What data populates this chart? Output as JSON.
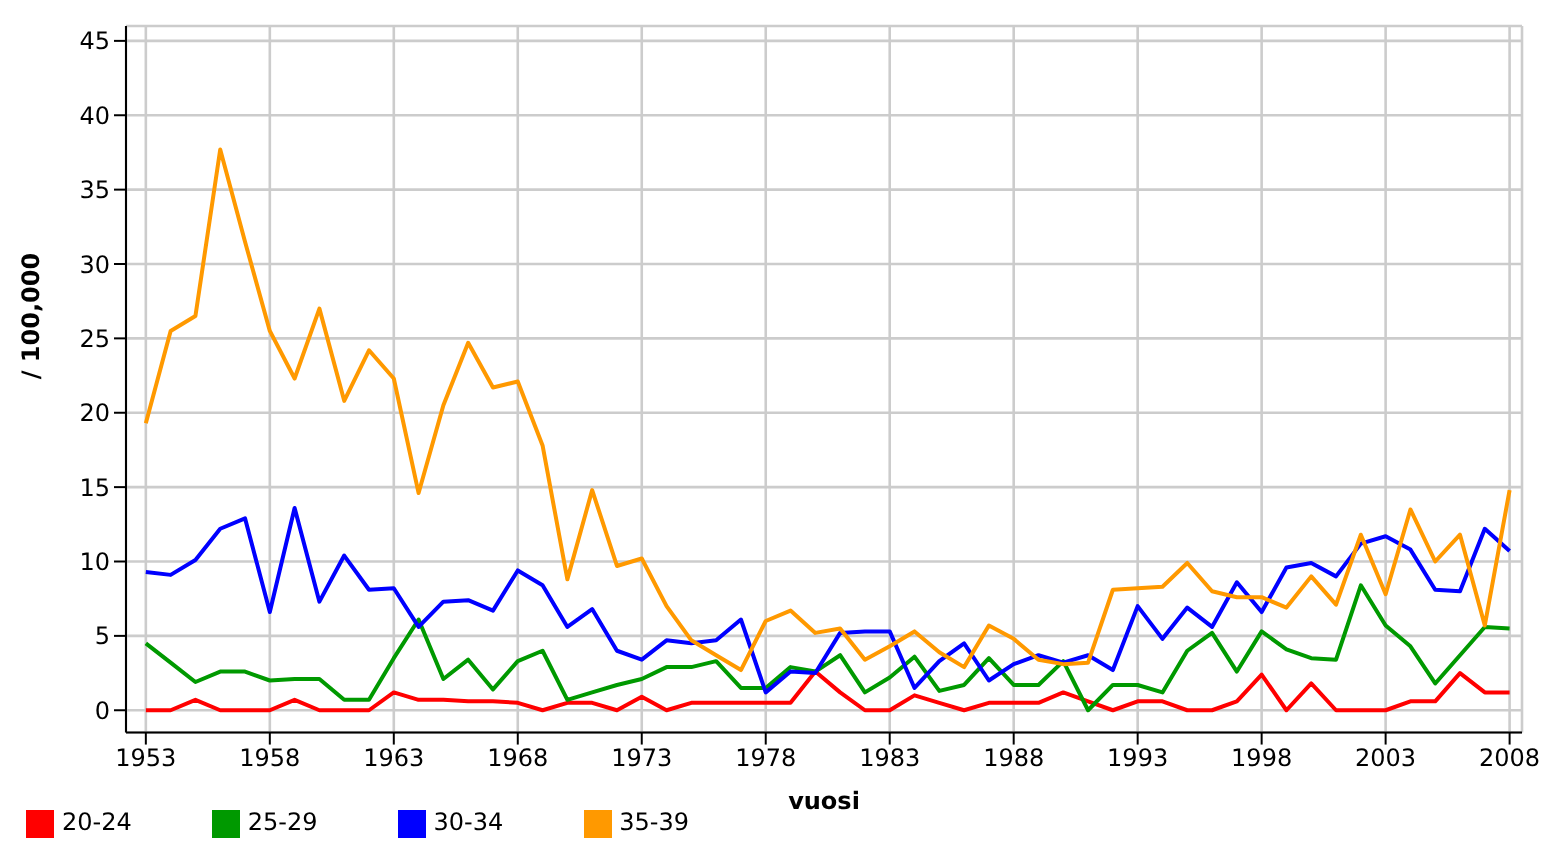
{
  "chart_data": {
    "type": "line",
    "xlabel": "vuosi",
    "ylabel": "/ 100,000",
    "x": [
      1953,
      1954,
      1955,
      1956,
      1957,
      1958,
      1959,
      1960,
      1961,
      1962,
      1963,
      1964,
      1965,
      1966,
      1967,
      1968,
      1969,
      1970,
      1971,
      1972,
      1973,
      1974,
      1975,
      1976,
      1977,
      1978,
      1979,
      1980,
      1981,
      1982,
      1983,
      1984,
      1985,
      1986,
      1987,
      1988,
      1989,
      1990,
      1991,
      1992,
      1993,
      1994,
      1995,
      1996,
      1997,
      1998,
      1999,
      2000,
      2001,
      2002,
      2003,
      2004,
      2005,
      2006,
      2007,
      2008
    ],
    "series": [
      {
        "name": "20-24",
        "color": "#ff0000",
        "values": [
          0,
          0,
          0.7,
          0,
          0,
          0,
          0.7,
          0,
          0,
          0,
          1.2,
          0.7,
          0.7,
          0.6,
          0.6,
          0.5,
          0,
          0.5,
          0.5,
          0,
          0.9,
          0,
          0.5,
          0.5,
          0.5,
          0.5,
          0.5,
          2.6,
          1.2,
          0,
          0,
          1,
          0.5,
          0,
          0.5,
          0.5,
          0.5,
          1.2,
          0.6,
          0,
          0.6,
          0.6,
          0,
          0,
          0.6,
          2.4,
          0,
          1.8,
          0,
          0,
          0,
          0.6,
          0.6,
          2.5,
          1.2,
          1.2
        ]
      },
      {
        "name": "25-29",
        "color": "#009900",
        "values": [
          4.5,
          3.2,
          1.9,
          2.6,
          2.6,
          2,
          2.1,
          2.1,
          0.7,
          0.7,
          3.5,
          6.1,
          2.1,
          3.4,
          1.4,
          3.3,
          4,
          0.7,
          1.2,
          1.7,
          2.1,
          2.9,
          2.9,
          3.3,
          1.5,
          1.5,
          2.9,
          2.6,
          3.7,
          1.2,
          2.2,
          3.6,
          1.3,
          1.7,
          3.5,
          1.7,
          1.7,
          3.3,
          0,
          1.7,
          1.7,
          1.2,
          4,
          5.2,
          2.6,
          5.3,
          4.1,
          3.5,
          3.4,
          8.4,
          5.7,
          4.3,
          1.8,
          3.7,
          5.6,
          5.5
        ]
      },
      {
        "name": "30-34",
        "color": "#0000ff",
        "values": [
          9.3,
          9.1,
          10.1,
          12.2,
          12.9,
          6.6,
          13.6,
          7.3,
          10.4,
          8.1,
          8.2,
          5.6,
          7.3,
          7.4,
          6.7,
          9.4,
          8.4,
          5.6,
          6.8,
          4,
          3.4,
          4.7,
          4.5,
          4.7,
          6.1,
          1.2,
          2.6,
          2.5,
          5.2,
          5.3,
          5.3,
          1.5,
          3.3,
          4.5,
          2,
          3.1,
          3.7,
          3.2,
          3.7,
          2.7,
          7,
          4.8,
          6.9,
          5.6,
          8.6,
          6.6,
          9.6,
          9.9,
          9,
          11.2,
          11.7,
          10.8,
          8.1,
          8,
          12.2,
          10.7
        ]
      },
      {
        "name": "35-39",
        "color": "#ff9900",
        "values": [
          19.3,
          25.5,
          26.5,
          37.7,
          31.5,
          25.5,
          22.3,
          27,
          20.8,
          24.2,
          22.3,
          14.6,
          20.5,
          24.7,
          21.7,
          22.1,
          17.8,
          8.8,
          14.8,
          9.7,
          10.2,
          7,
          4.7,
          3.7,
          2.7,
          6,
          6.7,
          5.2,
          5.5,
          3.4,
          4.3,
          5.3,
          3.9,
          2.9,
          5.7,
          4.8,
          3.4,
          3.1,
          3.2,
          8.1,
          8.2,
          8.3,
          9.9,
          8,
          7.6,
          7.6,
          6.9,
          9,
          7.1,
          11.8,
          7.8,
          13.5,
          10,
          11.8,
          5.7,
          14.8
        ]
      }
    ],
    "xlim": [
      1952.2,
      2008.5
    ],
    "xticks": [
      1953,
      1958,
      1963,
      1968,
      1973,
      1978,
      1983,
      1988,
      1993,
      1998,
      2003,
      2008
    ],
    "ylim": [
      -1.5,
      46
    ],
    "yticks": [
      0,
      5,
      10,
      15,
      20,
      25,
      30,
      35,
      40,
      45
    ],
    "grid": true,
    "legend": "bottom left",
    "marker": "none",
    "line_style": "solid"
  }
}
